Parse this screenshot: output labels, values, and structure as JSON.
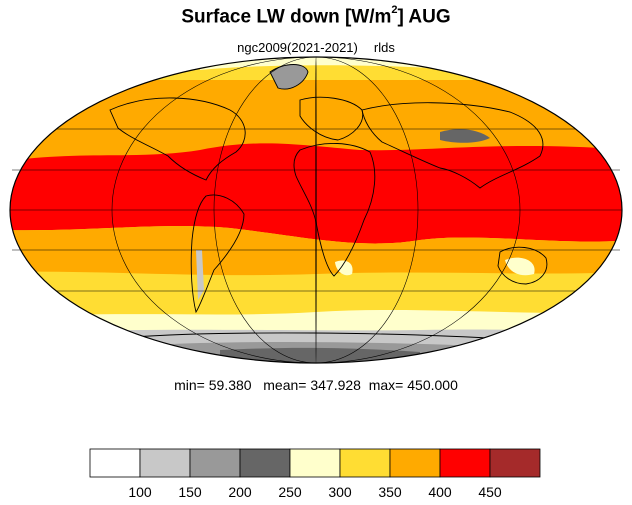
{
  "title": {
    "prefix": "Surface LW down [W/m",
    "superscript": "2",
    "suffix": "]  AUG"
  },
  "subtitle": {
    "run": "ngc2009(2021-2021)",
    "variable": "rlds"
  },
  "stats": {
    "min_label": "min=",
    "min": "59.380",
    "mean_label": "mean=",
    "mean": "347.928",
    "max_label": "max=",
    "max": "450.000"
  },
  "colorbar": {
    "colors": [
      "#ffffff",
      "#c8c8c8",
      "#999999",
      "#666666",
      "#ffffcc",
      "#ffdd33",
      "#ffaa00",
      "#ff0000",
      "#a52a2a"
    ],
    "labels": [
      "100",
      "150",
      "200",
      "250",
      "300",
      "350",
      "400",
      "450"
    ]
  },
  "map_colors": {
    "ocean_cold": "#ffdd33",
    "mid": "#ffaa00",
    "warm": "#ff0000",
    "pale": "#ffffcc",
    "ice_light": "#c8c8c8",
    "ice_mid": "#999999",
    "ice_dark": "#666666",
    "coast": "#000000"
  }
}
